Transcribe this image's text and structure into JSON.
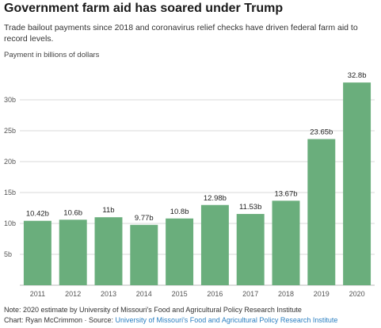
{
  "title": "Government farm aid has soared under Trump",
  "subtitle": "Trade bailout payments since 2018 and coronavirus relief checks have driven federal farm aid to record levels.",
  "unit_label": "Payment in billions of dollars",
  "note": "Note: 2020 estimate by University of Missouri's Food and Agricultural Policy Research Institute",
  "credit_prefix": "Chart: Ryan McCrimmon · Source: ",
  "credit_source": "University of Missouri's Food and Agricultural Policy Research Institute",
  "colors": {
    "bar": "#6aae7c",
    "grid": "#d9d9d9",
    "link": "#2a7fc1"
  },
  "chart_data": {
    "type": "bar",
    "categories": [
      "2011",
      "2012",
      "2013",
      "2014",
      "2015",
      "2016",
      "2017",
      "2018",
      "2019",
      "2020"
    ],
    "values": [
      10.42,
      10.6,
      11,
      9.77,
      10.8,
      12.98,
      11.53,
      13.67,
      23.65,
      32.8
    ],
    "data_labels": [
      "10.42b",
      "10.6b",
      "11b",
      "9.77b",
      "10.8b",
      "12.98b",
      "11.53b",
      "13.67b",
      "23.65b",
      "32.8b"
    ],
    "yticks": [
      5,
      10,
      15,
      20,
      25,
      30
    ],
    "ytick_labels": [
      "5b",
      "10b",
      "15b",
      "20b",
      "25b",
      "30b"
    ],
    "ylim": [
      0,
      35
    ],
    "grid": true
  }
}
